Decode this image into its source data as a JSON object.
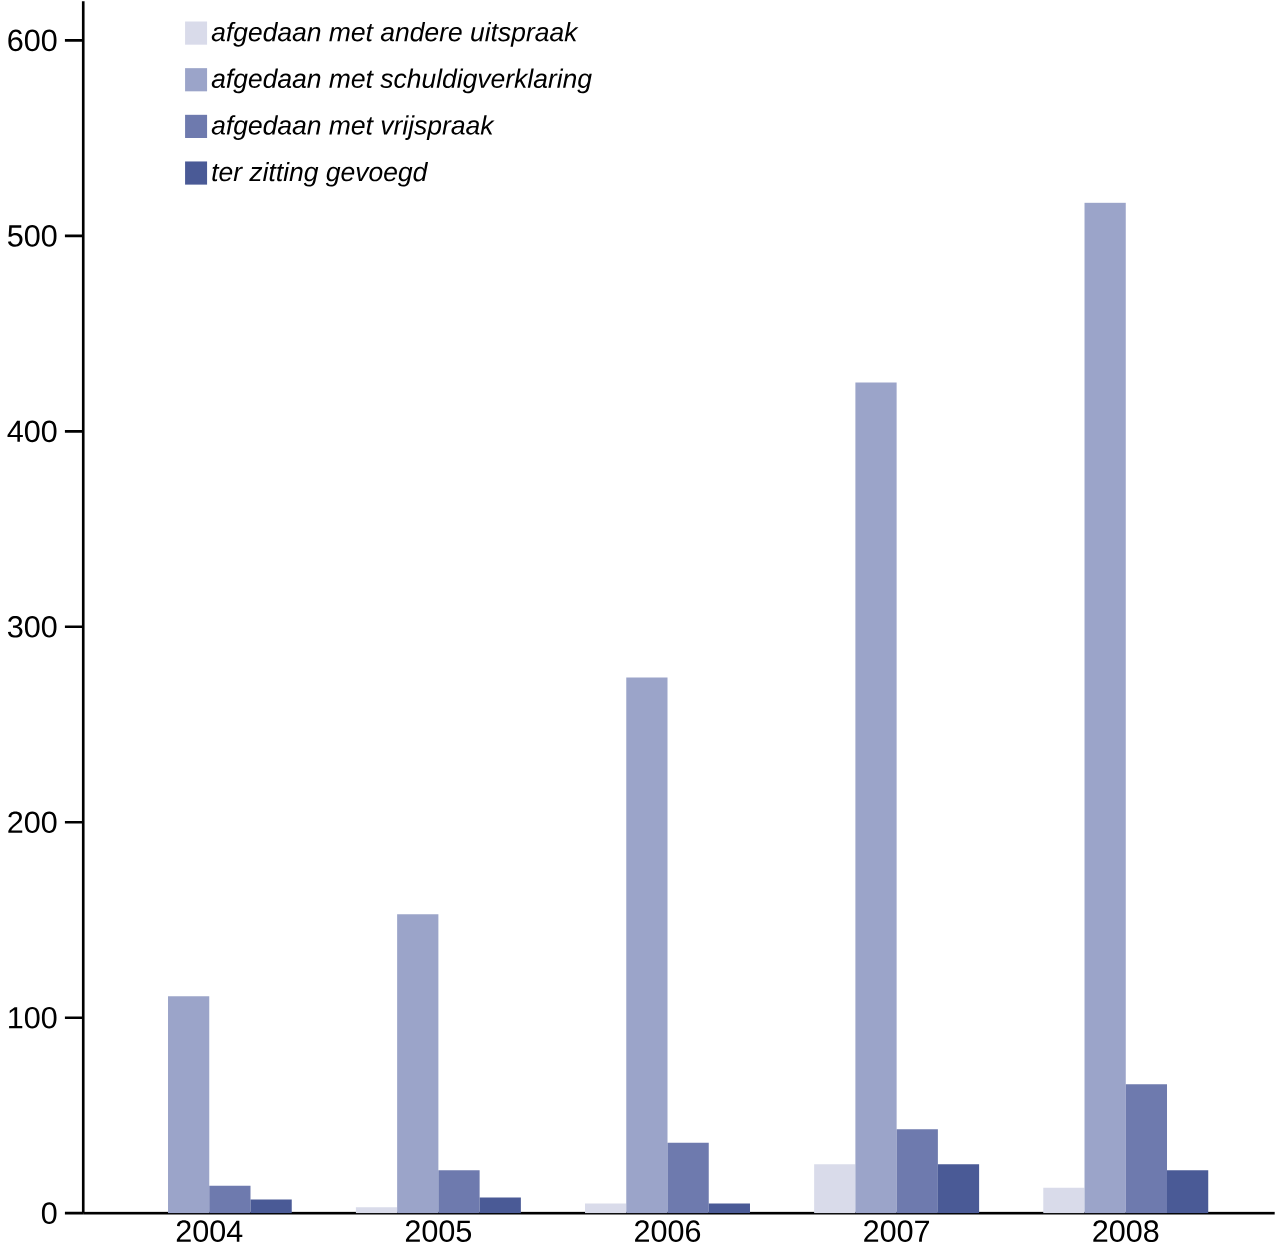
{
  "chart_data": {
    "type": "bar",
    "categories": [
      "2004",
      "2005",
      "2006",
      "2007",
      "2008"
    ],
    "series": [
      {
        "name": "*afgedaan met andere uitspraak*",
        "color": "#d9dbea",
        "values": [
          0,
          3,
          5,
          25,
          13
        ]
      },
      {
        "name": "*afgedaan met schuldigverklaring*",
        "color": "#9ba4c9",
        "values": [
          111,
          153,
          274,
          425,
          517
        ]
      },
      {
        "name": "*afgedaan met vrijspraak*",
        "color": "#6e7aae",
        "values": [
          14,
          22,
          36,
          43,
          66
        ]
      },
      {
        "name": "*ter zitting gevoegd*",
        "color": "#4a5a96",
        "values": [
          7,
          8,
          5,
          25,
          22
        ]
      }
    ],
    "ylim": [
      0,
      620
    ],
    "yticks": [
      0,
      100,
      200,
      300,
      400,
      500,
      600
    ],
    "grid": false,
    "legend": "top left"
  }
}
